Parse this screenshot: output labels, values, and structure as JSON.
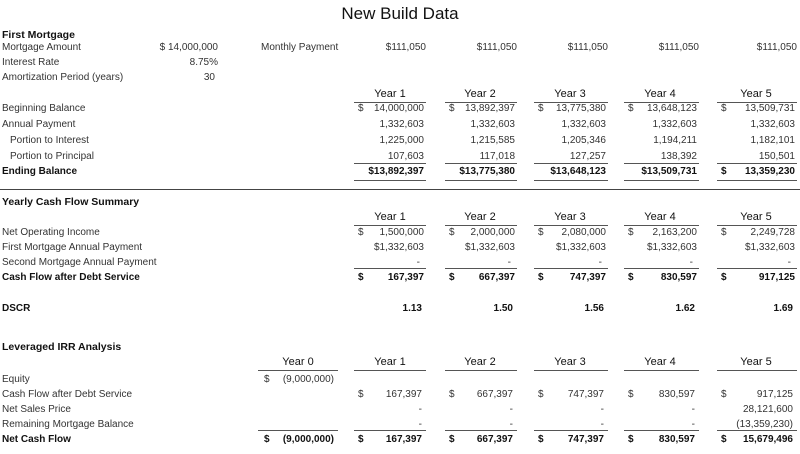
{
  "title": "New Build Data",
  "mortgage": {
    "section": "First Mortgage",
    "amount_label": "Mortgage Amount",
    "amount": "$ 14,000,000",
    "rate_label": "Interest Rate",
    "rate": "8.75%",
    "period_label": "Amortization Period (years)",
    "period": "30",
    "monthly_label": "Monthly Payment",
    "monthly": [
      "$111,050",
      "$111,050",
      "$111,050",
      "$111,050",
      "$111,050"
    ]
  },
  "years": [
    "Year 1",
    "Year 2",
    "Year 3",
    "Year 4",
    "Year 5"
  ],
  "year0": "Year 0",
  "amort": {
    "begin_label": "Beginning Balance",
    "begin": [
      "14,000,000",
      "13,892,397",
      "13,775,380",
      "13,648,123",
      "13,509,731"
    ],
    "annual_label": "Annual Payment",
    "annual": [
      "1,332,603",
      "1,332,603",
      "1,332,603",
      "1,332,603",
      "1,332,603"
    ],
    "interest_label": "Portion to Interest",
    "interest": [
      "1,225,000",
      "1,215,585",
      "1,205,346",
      "1,194,211",
      "1,182,101"
    ],
    "principal_label": "Portion to Principal",
    "principal": [
      "107,603",
      "117,018",
      "127,257",
      "138,392",
      "150,501"
    ],
    "ending_label": "Ending Balance",
    "ending": [
      "$13,892,397",
      "$13,775,380",
      "$13,648,123",
      "$13,509,731",
      "13,359,230"
    ]
  },
  "cashflow": {
    "section": "Yearly Cash Flow Summary",
    "noi_label": "Net Operating Income",
    "noi": [
      "1,500,000",
      "2,000,000",
      "2,080,000",
      "2,163,200",
      "2,249,728"
    ],
    "first_label": "First Mortgage Annual Payment",
    "first": [
      "$1,332,603",
      "$1,332,603",
      "$1,332,603",
      "$1,332,603",
      "$1,332,603"
    ],
    "second_label": "Second Mortgage Annual Payment",
    "second": [
      "-",
      "-",
      "-",
      "-",
      "-"
    ],
    "cfads_label": "Cash Flow after Debt Service",
    "cfads": [
      "167,397",
      "667,397",
      "747,397",
      "830,597",
      "917,125"
    ],
    "dscr_label": "DSCR",
    "dscr": [
      "1.13",
      "1.50",
      "1.56",
      "1.62",
      "1.69"
    ]
  },
  "irr": {
    "section": "Leveraged IRR Analysis",
    "equity_label": "Equity",
    "equity0": "(9,000,000)",
    "cfads_label": "Cash Flow after Debt Service",
    "cfads": [
      "167,397",
      "667,397",
      "747,397",
      "830,597",
      "917,125"
    ],
    "sales_label": "Net Sales Price",
    "sales": [
      "-",
      "-",
      "-",
      "-",
      "28,121,600"
    ],
    "remaining_label": "Remaining Mortgage Balance",
    "remaining": [
      "-",
      "-",
      "-",
      "-",
      "(13,359,230)"
    ],
    "net_label": "Net Cash Flow",
    "net0": "(9,000,000)",
    "net": [
      "167,397",
      "667,397",
      "747,397",
      "830,597",
      "15,679,496"
    ]
  },
  "currency": "$"
}
